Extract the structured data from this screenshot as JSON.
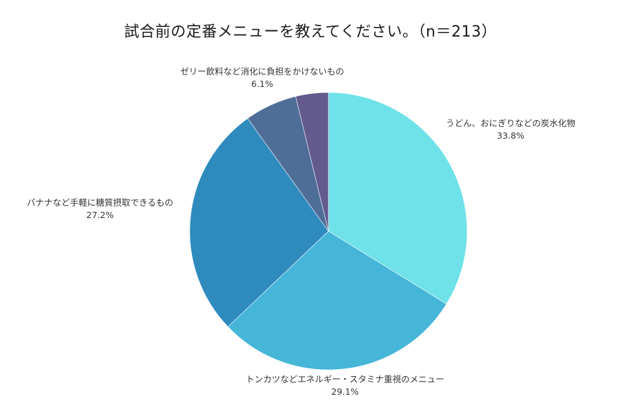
{
  "title": "試合前の定番メニューを教えてください。（n＝213）",
  "chart_data": {
    "type": "pie",
    "title": "試合前の定番メニューを教えてください。（n＝213）",
    "n": 213,
    "start_angle_deg": 0,
    "direction": "clockwise",
    "categories": [
      "うどん、おにぎりなどの炭水化物",
      "トンカツなどエネルギー・スタミナ重視のメニュー",
      "バナナなど手軽に糖質摂取できるもの",
      "ゼリー飲料など消化に負担をかけないもの",
      "その他（ラベルなし）"
    ],
    "values": [
      33.8,
      29.1,
      27.2,
      6.1,
      3.8
    ],
    "colors": [
      "#6EE2E8",
      "#45B6D8",
      "#2F8ABE",
      "#4E6E98",
      "#635A8E"
    ],
    "labels": [
      {
        "text": "うどん、おにぎりなどの炭水化物",
        "pct": "33.8%"
      },
      {
        "text": "トンカツなどエネルギー・スタミナ重視のメニュー",
        "pct": "29.1%"
      },
      {
        "text": "バナナなど手軽に糖質摂取できるもの",
        "pct": "27.2%"
      },
      {
        "text": "ゼリー飲料など消化に負担をかけないもの",
        "pct": "6.1%"
      }
    ],
    "legend": "none"
  }
}
